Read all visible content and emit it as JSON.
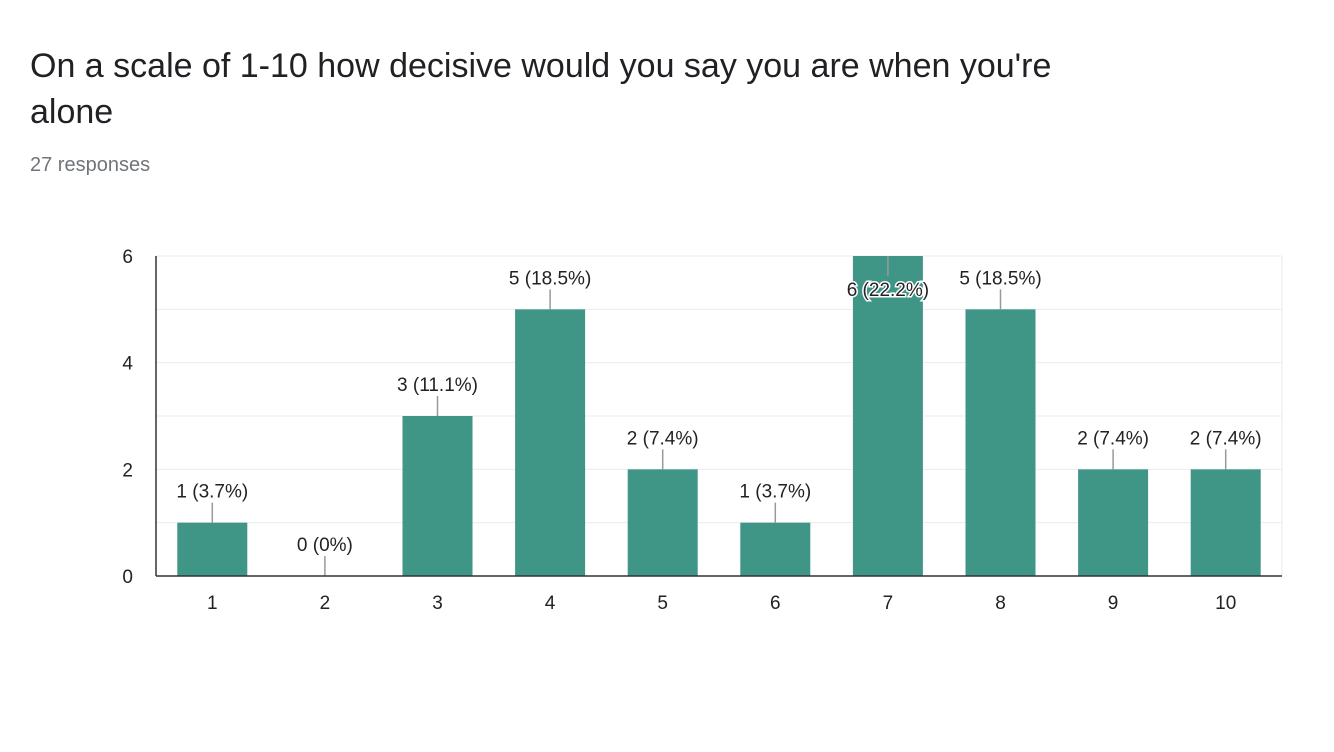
{
  "question": {
    "title": "On a scale of 1-10 how decisive would you say you are when you're alone",
    "responses": "27 responses"
  },
  "colors": {
    "bar": "#3f9586",
    "grid": "#ebebeb",
    "axis": "#333333",
    "label_line": "#999999",
    "text": "#222222"
  },
  "chart_data": {
    "type": "bar",
    "categories": [
      "1",
      "2",
      "3",
      "4",
      "5",
      "6",
      "7",
      "8",
      "9",
      "10"
    ],
    "values": [
      1,
      0,
      3,
      5,
      2,
      1,
      6,
      5,
      2,
      2
    ],
    "data_labels": [
      "1 (3.7%)",
      "0 (0%)",
      "3 (11.1%)",
      "5 (18.5%)",
      "2 (7.4%)",
      "1 (3.7%)",
      "6 (22.2%)",
      "5 (18.5%)",
      "2 (7.4%)",
      "2 (7.4%)"
    ],
    "y_ticks": [
      0,
      2,
      4,
      6
    ],
    "ylim": [
      0,
      6
    ],
    "grid": true,
    "legend": false,
    "xlabel": "",
    "ylabel": ""
  }
}
